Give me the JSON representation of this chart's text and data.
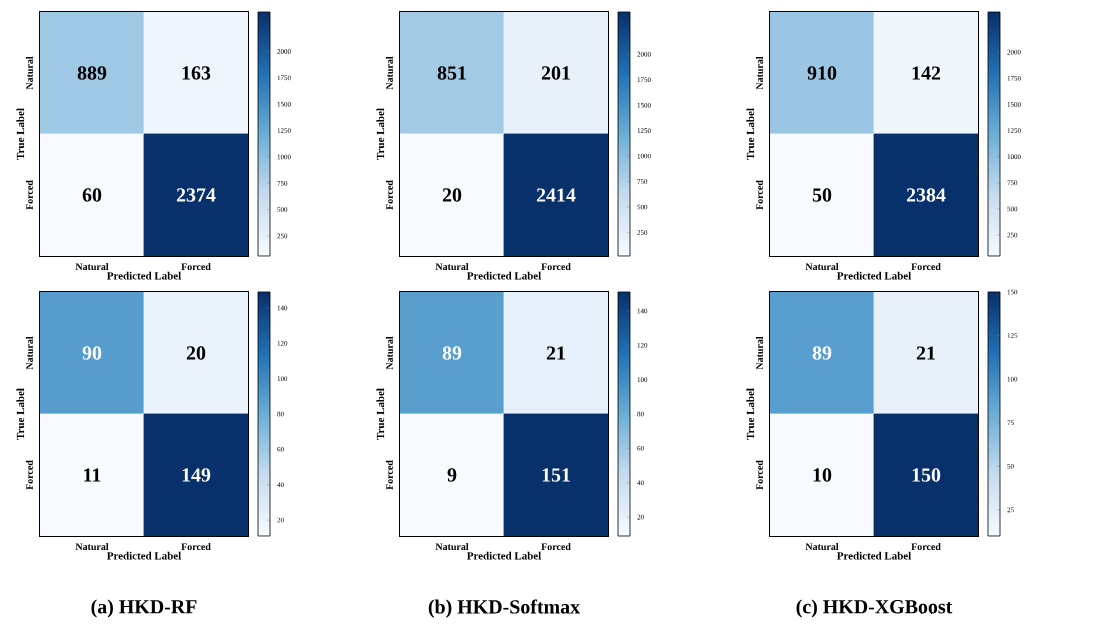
{
  "chart_data": [
    {
      "type": "heatmap",
      "categories": [
        "Natural",
        "Forced"
      ],
      "y_categories": [
        "Natural",
        "Forced"
      ],
      "xlabel": "Predicted Label",
      "ylabel": "True Label",
      "cells": [
        [
          889,
          163
        ],
        [
          60,
          2374
        ]
      ],
      "clim": [
        60,
        2374
      ],
      "cticks": [
        250,
        500,
        750,
        1000,
        1250,
        1500,
        1750,
        2000
      ],
      "data_labels": true
    },
    {
      "type": "heatmap",
      "categories": [
        "Natural",
        "Forced"
      ],
      "y_categories": [
        "Natural",
        "Forced"
      ],
      "xlabel": "Predicted Label",
      "ylabel": "True Label",
      "cells": [
        [
          851,
          201
        ],
        [
          20,
          2414
        ]
      ],
      "clim": [
        20,
        2414
      ],
      "cticks": [
        250,
        500,
        750,
        1000,
        1250,
        1500,
        1750,
        2000
      ],
      "data_labels": true
    },
    {
      "type": "heatmap",
      "categories": [
        "Natural",
        "Forced"
      ],
      "y_categories": [
        "Natural",
        "Forced"
      ],
      "xlabel": "Predicted Label",
      "ylabel": "True Label",
      "cells": [
        [
          910,
          142
        ],
        [
          50,
          2384
        ]
      ],
      "clim": [
        50,
        2384
      ],
      "cticks": [
        250,
        500,
        750,
        1000,
        1250,
        1500,
        1750,
        2000
      ],
      "data_labels": true
    },
    {
      "type": "heatmap",
      "title": "(a) HKD-RF",
      "categories": [
        "Natural",
        "Forced"
      ],
      "y_categories": [
        "Natural",
        "Forced"
      ],
      "xlabel": "Predicted Label",
      "ylabel": "True Label",
      "cells": [
        [
          90,
          20
        ],
        [
          11,
          149
        ]
      ],
      "clim": [
        11,
        149
      ],
      "cticks": [
        20,
        40,
        60,
        80,
        100,
        120,
        140
      ],
      "data_labels": true
    },
    {
      "type": "heatmap",
      "title": "(b) HKD-Softmax",
      "categories": [
        "Natural",
        "Forced"
      ],
      "y_categories": [
        "Natural",
        "Forced"
      ],
      "xlabel": "Predicted Label",
      "ylabel": "True Label",
      "cells": [
        [
          89,
          21
        ],
        [
          9,
          151
        ]
      ],
      "clim": [
        9,
        151
      ],
      "cticks": [
        20,
        40,
        60,
        80,
        100,
        120,
        140
      ],
      "data_labels": true
    },
    {
      "type": "heatmap",
      "title": "(c) HKD-XGBoost",
      "categories": [
        "Natural",
        "Forced"
      ],
      "y_categories": [
        "Natural",
        "Forced"
      ],
      "xlabel": "Predicted Label",
      "ylabel": "True Label",
      "cells": [
        [
          89,
          21
        ],
        [
          10,
          150
        ]
      ],
      "clim": [
        10,
        150
      ],
      "cticks": [
        25,
        50,
        75,
        100,
        125,
        150
      ],
      "data_labels": true
    }
  ]
}
